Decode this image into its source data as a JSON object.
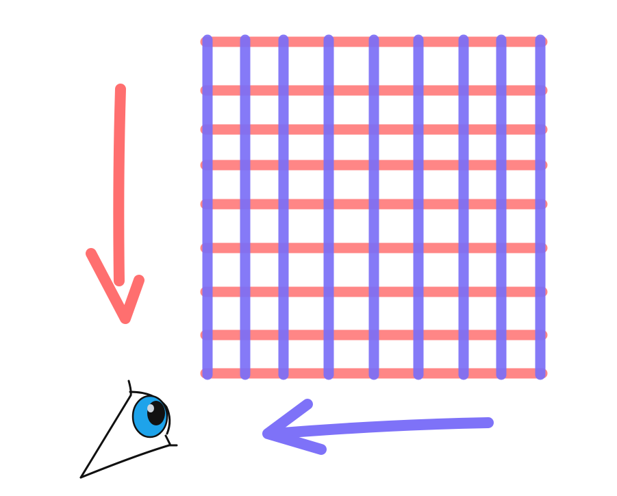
{
  "colors": {
    "background": "#ffffff",
    "red_lines": "#ff7a7a",
    "blue_lines": "#7b6ff7",
    "red_arrow": "#ff6f6f",
    "blue_arrow": "#7e72f8",
    "eye_iris": "#1ea3ea",
    "eye_outline": "#111111"
  },
  "icons": {
    "down_arrow": "down-arrow-icon",
    "left_arrow": "left-arrow-icon",
    "eye": "eye-icon"
  },
  "grid": {
    "horizontal_line_count": 9,
    "vertical_line_count": 9
  }
}
